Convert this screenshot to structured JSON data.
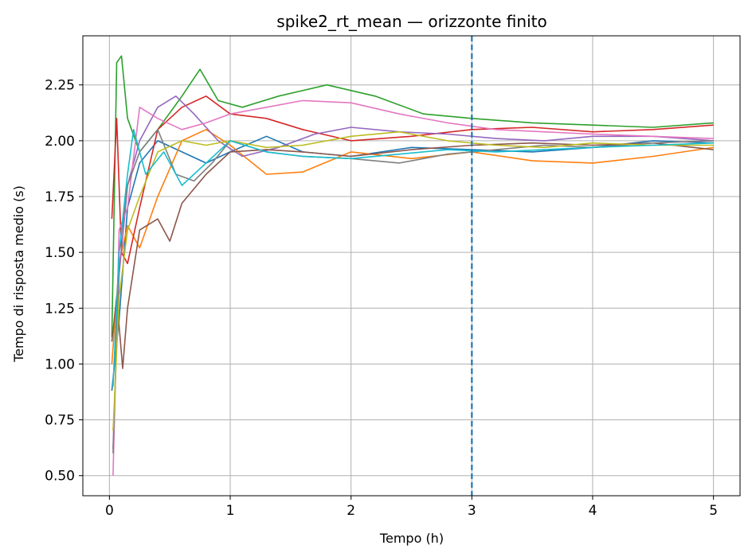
{
  "chart_data": {
    "type": "line",
    "title": "spike2_rt_mean — orizzonte finito",
    "xlabel": "Tempo (h)",
    "ylabel": "Tempo di risposta medio (s)",
    "xlim": [
      -0.22,
      5.22
    ],
    "ylim": [
      0.41,
      2.47
    ],
    "xticks": [
      0,
      1,
      2,
      3,
      4,
      5
    ],
    "xtick_labels": [
      "0",
      "1",
      "2",
      "3",
      "4",
      "5"
    ],
    "yticks": [
      0.5,
      0.75,
      1.0,
      1.25,
      1.5,
      1.75,
      2.0,
      2.25
    ],
    "ytick_labels": [
      "0.50",
      "0.75",
      "1.00",
      "1.25",
      "1.50",
      "1.75",
      "2.00",
      "2.25"
    ],
    "grid": true,
    "legend": "none",
    "reference_line": {
      "x": 3,
      "style": "dashed",
      "color": "#1f77b4"
    },
    "series": [
      {
        "color": "#1f77b4",
        "x": [
          0.02,
          0.08,
          0.15,
          0.25,
          0.4,
          0.6,
          0.8,
          1.0,
          1.3,
          1.6,
          2.0,
          2.5,
          3.0,
          3.5,
          4.0,
          4.5,
          5.0
        ],
        "values": [
          0.88,
          1.2,
          1.7,
          1.9,
          2.0,
          1.95,
          1.9,
          1.95,
          2.02,
          1.95,
          1.93,
          1.97,
          1.96,
          1.95,
          1.97,
          2.0,
          1.99
        ]
      },
      {
        "color": "#ff7f0e",
        "x": [
          0.02,
          0.08,
          0.15,
          0.25,
          0.4,
          0.6,
          0.8,
          1.0,
          1.3,
          1.6,
          2.0,
          2.5,
          3.0,
          3.5,
          4.0,
          4.5,
          5.0
        ],
        "values": [
          1.0,
          1.45,
          1.62,
          1.52,
          1.75,
          2.0,
          2.05,
          1.98,
          1.85,
          1.86,
          1.95,
          1.92,
          1.95,
          1.91,
          1.9,
          1.93,
          1.97
        ]
      },
      {
        "color": "#2ca02c",
        "x": [
          0.02,
          0.06,
          0.1,
          0.15,
          0.25,
          0.4,
          0.6,
          0.75,
          0.9,
          1.1,
          1.4,
          1.8,
          2.2,
          2.6,
          3.0,
          3.5,
          4.0,
          4.5,
          5.0
        ],
        "values": [
          1.12,
          2.35,
          2.38,
          2.1,
          1.95,
          2.05,
          2.2,
          2.32,
          2.18,
          2.15,
          2.2,
          2.25,
          2.2,
          2.12,
          2.1,
          2.08,
          2.07,
          2.06,
          2.08
        ]
      },
      {
        "color": "#d62728",
        "x": [
          0.02,
          0.06,
          0.1,
          0.15,
          0.25,
          0.4,
          0.6,
          0.8,
          1.0,
          1.3,
          1.6,
          2.0,
          2.5,
          3.0,
          3.5,
          4.0,
          4.5,
          5.0
        ],
        "values": [
          1.65,
          2.1,
          1.5,
          1.45,
          1.7,
          2.05,
          2.15,
          2.2,
          2.12,
          2.1,
          2.05,
          2.0,
          2.02,
          2.05,
          2.06,
          2.04,
          2.05,
          2.07
        ]
      },
      {
        "color": "#9467bd",
        "x": [
          0.03,
          0.08,
          0.15,
          0.25,
          0.4,
          0.55,
          0.7,
          0.9,
          1.1,
          1.4,
          1.7,
          2.0,
          2.4,
          2.8,
          3.2,
          3.6,
          4.0,
          4.5,
          5.0
        ],
        "values": [
          0.62,
          1.4,
          1.8,
          2.0,
          2.15,
          2.2,
          2.12,
          2.0,
          1.93,
          1.97,
          2.03,
          2.06,
          2.04,
          2.03,
          2.01,
          2.0,
          2.02,
          2.02,
          2.0
        ]
      },
      {
        "color": "#8c564b",
        "x": [
          0.02,
          0.06,
          0.11,
          0.15,
          0.25,
          0.4,
          0.5,
          0.6,
          0.8,
          1.0,
          1.3,
          1.6,
          2.0,
          2.5,
          3.0,
          3.5,
          4.0,
          4.5,
          5.0
        ],
        "values": [
          1.1,
          1.3,
          0.98,
          1.25,
          1.6,
          1.65,
          1.55,
          1.72,
          1.85,
          1.95,
          1.96,
          1.95,
          1.93,
          1.96,
          1.98,
          1.99,
          1.98,
          1.99,
          1.96
        ]
      },
      {
        "color": "#e377c2",
        "x": [
          0.03,
          0.08,
          0.15,
          0.25,
          0.4,
          0.6,
          0.8,
          1.0,
          1.3,
          1.6,
          2.0,
          2.4,
          2.8,
          3.2,
          3.6,
          4.0,
          4.5,
          5.0
        ],
        "values": [
          0.5,
          1.6,
          1.7,
          2.15,
          2.1,
          2.05,
          2.08,
          2.12,
          2.15,
          2.18,
          2.17,
          2.12,
          2.08,
          2.05,
          2.04,
          2.03,
          2.02,
          2.01
        ]
      },
      {
        "color": "#7f7f7f",
        "x": [
          0.03,
          0.08,
          0.15,
          0.25,
          0.4,
          0.55,
          0.7,
          0.85,
          1.0,
          1.3,
          1.6,
          2.0,
          2.4,
          2.8,
          3.2,
          3.6,
          4.0,
          4.5,
          5.0
        ],
        "values": [
          0.6,
          1.5,
          1.8,
          1.95,
          2.05,
          1.85,
          1.82,
          1.9,
          2.0,
          1.95,
          1.93,
          1.92,
          1.9,
          1.94,
          1.96,
          1.98,
          1.97,
          1.99,
          2.0
        ]
      },
      {
        "color": "#bcbd22",
        "x": [
          0.03,
          0.08,
          0.15,
          0.25,
          0.4,
          0.6,
          0.8,
          1.0,
          1.3,
          1.6,
          2.0,
          2.4,
          2.8,
          3.2,
          3.6,
          4.0,
          4.5,
          5.0
        ],
        "values": [
          0.7,
          1.3,
          1.6,
          1.75,
          1.95,
          2.0,
          1.98,
          2.0,
          1.97,
          1.98,
          2.02,
          2.04,
          2.0,
          1.98,
          1.97,
          1.99,
          1.98,
          1.98
        ]
      },
      {
        "color": "#17becf",
        "x": [
          0.03,
          0.08,
          0.15,
          0.2,
          0.3,
          0.45,
          0.6,
          0.8,
          1.0,
          1.3,
          1.6,
          2.0,
          2.4,
          2.8,
          3.2,
          3.6,
          4.0,
          4.5,
          5.0
        ],
        "values": [
          0.9,
          1.5,
          1.85,
          2.05,
          1.85,
          1.95,
          1.8,
          1.9,
          2.0,
          1.95,
          1.93,
          1.92,
          1.94,
          1.96,
          1.95,
          1.96,
          1.97,
          1.98,
          1.99
        ]
      }
    ]
  }
}
